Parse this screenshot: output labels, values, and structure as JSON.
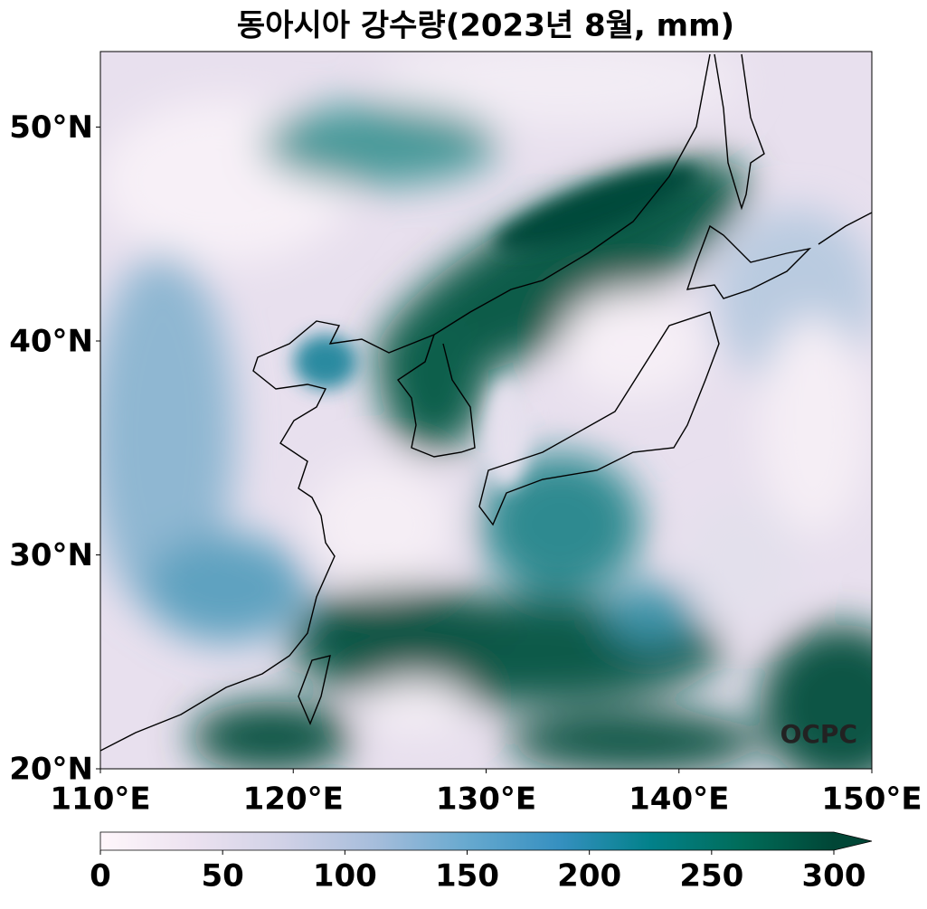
{
  "title": "동아시아 강수량(2023년 8월, mm)",
  "map": {
    "lon_range": [
      110,
      150
    ],
    "lat_range": [
      20,
      53.53
    ],
    "lon_ticks": [
      {
        "value": 110,
        "label": "110°E"
      },
      {
        "value": 120,
        "label": "120°E"
      },
      {
        "value": 130,
        "label": "130°E"
      },
      {
        "value": 140,
        "label": "140°E"
      },
      {
        "value": 150,
        "label": "150°E"
      }
    ],
    "lat_ticks": [
      {
        "value": 20,
        "label": "20°N"
      },
      {
        "value": 30,
        "label": "30°N"
      },
      {
        "value": 40,
        "label": "40°N"
      },
      {
        "value": 50,
        "label": "50°N"
      }
    ],
    "watermark": "OCPC"
  },
  "colorbar": {
    "range": [
      0,
      300
    ],
    "ticks": [
      0,
      50,
      100,
      150,
      200,
      250,
      300
    ]
  }
}
